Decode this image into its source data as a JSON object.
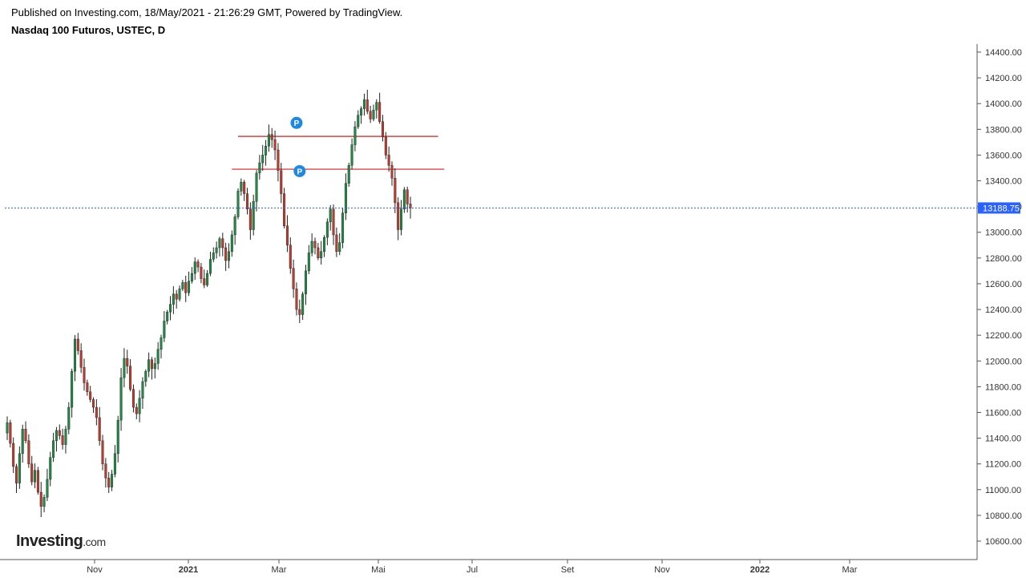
{
  "header": {
    "published": "Published on Investing.com, 18/May/2021 - 21:26:29 GMT, Powered by TradingView.",
    "title": "Nasdaq 100 Futuros, USTEC, D"
  },
  "logo": {
    "brand": "Investing",
    "suffix": ".com"
  },
  "chart_data": {
    "type": "candlestick",
    "title": "Nasdaq 100 Futuros, USTEC, D",
    "ylim": [
      10500,
      14500
    ],
    "y_ticks": [
      "14400.00",
      "14200.00",
      "14000.00",
      "13800.00",
      "13600.00",
      "13400.00",
      "13200.00",
      "13000.00",
      "12800.00",
      "12600.00",
      "12400.00",
      "12200.00",
      "12000.00",
      "11800.00",
      "11600.00",
      "11400.00",
      "11200.00",
      "11000.00",
      "10800.00",
      "10600.00"
    ],
    "x_ticks": [
      "Nov",
      "2021",
      "Mar",
      "Mai",
      "Jul",
      "Set",
      "Nov",
      "2022",
      "Mar"
    ],
    "current_price": "13188.75",
    "current_price_value": 13188.75,
    "colors": {
      "up": "#1e8a43",
      "down": "#c0392b",
      "current_line": "#2962ff",
      "price_tag_bg": "#2962ff",
      "horizontal_lines": "#e31a1a",
      "marker": "#1e88e5"
    },
    "horizontal_lines": [
      {
        "y": 13745,
        "x_start": 75,
        "x_end": 140
      },
      {
        "y": 13490,
        "x_start": 73,
        "x_end": 142
      }
    ],
    "markers": [
      {
        "label": "P",
        "x": 94,
        "y": 13850
      },
      {
        "label": "P",
        "x": 95,
        "y": 13475
      }
    ],
    "closes": [
      11520,
      11360,
      11180,
      11050,
      11280,
      11470,
      11380,
      11200,
      11060,
      11150,
      10980,
      10870,
      10940,
      11080,
      11250,
      11380,
      11460,
      11420,
      11350,
      11470,
      11640,
      11920,
      12170,
      12080,
      11950,
      11830,
      11760,
      11700,
      11640,
      11560,
      11380,
      11200,
      11090,
      11020,
      11120,
      11280,
      11540,
      11870,
      12020,
      11960,
      11780,
      11640,
      11590,
      11710,
      11840,
      11920,
      12010,
      11940,
      11980,
      12090,
      12180,
      12310,
      12380,
      12440,
      12520,
      12480,
      12560,
      12610,
      12530,
      12620,
      12680,
      12770,
      12730,
      12640,
      12590,
      12680,
      12790,
      12840,
      12880,
      12950,
      12880,
      12780,
      12850,
      12980,
      13120,
      13320,
      13390,
      13300,
      13180,
      13020,
      13240,
      13460,
      13540,
      13600,
      13670,
      13760,
      13720,
      13640,
      13480,
      13300,
      13050,
      12900,
      12720,
      12560,
      12400,
      12360,
      12520,
      12700,
      12840,
      12930,
      12880,
      12800,
      12850,
      12960,
      13080,
      13180,
      12980,
      12850,
      12920,
      13150,
      13380,
      13520,
      13680,
      13820,
      13910,
      13960,
      14030,
      13940,
      13880,
      13950,
      14010,
      13860,
      13740,
      13600,
      13520,
      13420,
      13230,
      13020,
      13180,
      13330,
      13220,
      13188.75
    ]
  }
}
